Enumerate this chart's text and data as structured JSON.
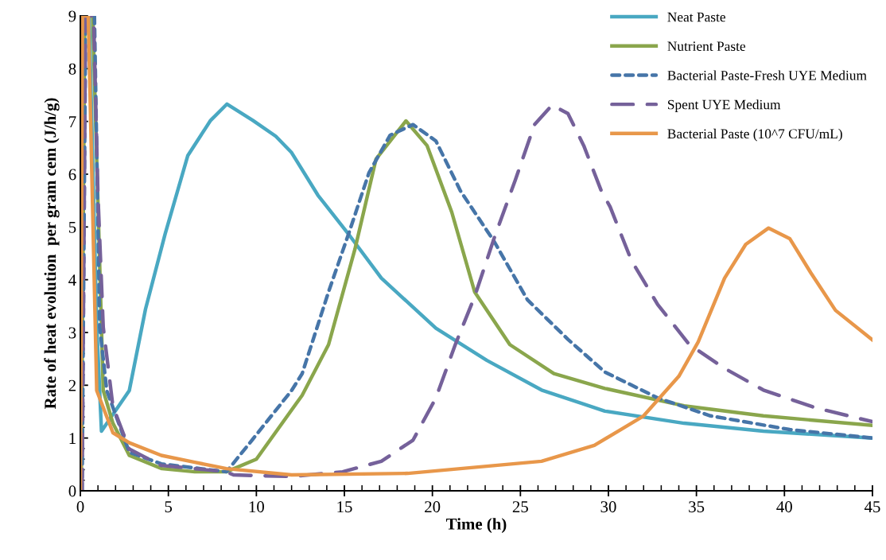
{
  "chart_data": {
    "type": "line",
    "xlabel": "Time (h)",
    "ylabel": "Rate of heat evolution  per gram cem (J/h/g)",
    "xlim": [
      0,
      45
    ],
    "ylim": [
      0,
      9
    ],
    "xticks": [
      0,
      5,
      10,
      15,
      20,
      25,
      30,
      35,
      40,
      45
    ],
    "yticks": [
      0,
      1,
      2,
      3,
      4,
      5,
      6,
      7,
      8,
      9
    ],
    "grid": false,
    "legend": "top right",
    "marker": "none",
    "series": [
      {
        "name": "Neat Paste",
        "color": "#49a8c2",
        "line_style": "solid",
        "x": [
          0,
          0.2,
          0.5,
          0.93,
          1.2,
          2.78,
          3.7,
          4.81,
          6.1,
          7.4,
          8.33,
          9.8,
          11.1,
          12.0,
          13.5,
          15.2,
          17.1,
          20.2,
          23.1,
          26.2,
          29.8,
          34.3,
          38.8,
          45
        ],
        "values": [
          0,
          9,
          9,
          3.14,
          1.13,
          1.9,
          3.44,
          4.86,
          6.35,
          7.02,
          7.33,
          7.02,
          6.72,
          6.41,
          5.6,
          4.88,
          4.03,
          3.08,
          2.47,
          1.91,
          1.51,
          1.28,
          1.13,
          1.0
        ]
      },
      {
        "name": "Nutrient Paste",
        "color": "#8aa64c",
        "line_style": "solid",
        "x": [
          0.05,
          0.25,
          0.7,
          1.3,
          1.85,
          2.78,
          4.63,
          6.5,
          8.3,
          10.0,
          12.6,
          14.1,
          15.6,
          16.8,
          18.5,
          19.7,
          21.1,
          22.4,
          24.4,
          26.9,
          29.8,
          34.3,
          38.8,
          45
        ],
        "values": [
          0,
          9,
          9,
          1.9,
          1.28,
          0.67,
          0.42,
          0.36,
          0.36,
          0.6,
          1.81,
          2.77,
          4.58,
          6.29,
          7.01,
          6.54,
          5.28,
          3.77,
          2.77,
          2.22,
          1.94,
          1.61,
          1.42,
          1.24
        ]
      },
      {
        "name": "Bacterial Paste-Fresh UYE Medium",
        "color": "#4675a8",
        "line_style": "dotted",
        "x": [
          0.1,
          0.3,
          0.8,
          1.1,
          1.5,
          2.78,
          4.6,
          8.3,
          9.8,
          12.0,
          12.6,
          14.1,
          15.3,
          16.4,
          17.6,
          18.9,
          20.2,
          21.6,
          23.5,
          25.4,
          27.7,
          29.8,
          32.8,
          35.8,
          40.3,
          45
        ],
        "values": [
          0,
          9,
          9,
          3.1,
          1.9,
          0.73,
          0.51,
          0.36,
          0.98,
          1.9,
          2.22,
          3.77,
          4.93,
          6.03,
          6.74,
          6.94,
          6.63,
          5.68,
          4.73,
          3.62,
          2.87,
          2.25,
          1.76,
          1.42,
          1.16,
          1.0
        ]
      },
      {
        "name": "Spent UYE Medium",
        "color": "#75619a",
        "line_style": "dashed",
        "x": [
          0.1,
          0.3,
          0.75,
          1.0,
          1.3,
          1.85,
          2.78,
          4.6,
          8.3,
          8.7,
          12.0,
          14.9,
          17.1,
          18.9,
          20.2,
          21.3,
          22.4,
          23.5,
          24.7,
          25.8,
          26.8,
          27.7,
          28.6,
          29.6,
          30.1,
          31.3,
          32.8,
          34.6,
          36.6,
          38.8,
          41.8,
          45
        ],
        "values": [
          0,
          9,
          9,
          5.6,
          3.1,
          1.6,
          0.79,
          0.48,
          0.36,
          0.3,
          0.27,
          0.36,
          0.56,
          0.96,
          1.76,
          2.77,
          3.68,
          4.78,
          5.88,
          6.94,
          7.31,
          7.15,
          6.54,
          5.68,
          5.38,
          4.37,
          3.53,
          2.77,
          2.32,
          1.91,
          1.57,
          1.31
        ]
      },
      {
        "name": "Bacterial Paste (10^7 CFU/mL)",
        "color": "#e8974a",
        "line_style": "solid",
        "x": [
          0,
          0.12,
          0.45,
          0.93,
          1.85,
          2.78,
          4.6,
          6.5,
          8.3,
          12.0,
          18.6,
          26.2,
          29.2,
          30.7,
          32.0,
          34.0,
          35.1,
          36.6,
          37.8,
          39.1,
          40.3,
          41.5,
          42.9,
          45
        ],
        "values": [
          0,
          9,
          9,
          1.9,
          1.1,
          0.91,
          0.67,
          0.54,
          0.42,
          0.3,
          0.33,
          0.56,
          0.86,
          1.16,
          1.42,
          2.17,
          2.82,
          4.03,
          4.67,
          4.98,
          4.78,
          4.13,
          3.42,
          2.86
        ]
      }
    ]
  }
}
